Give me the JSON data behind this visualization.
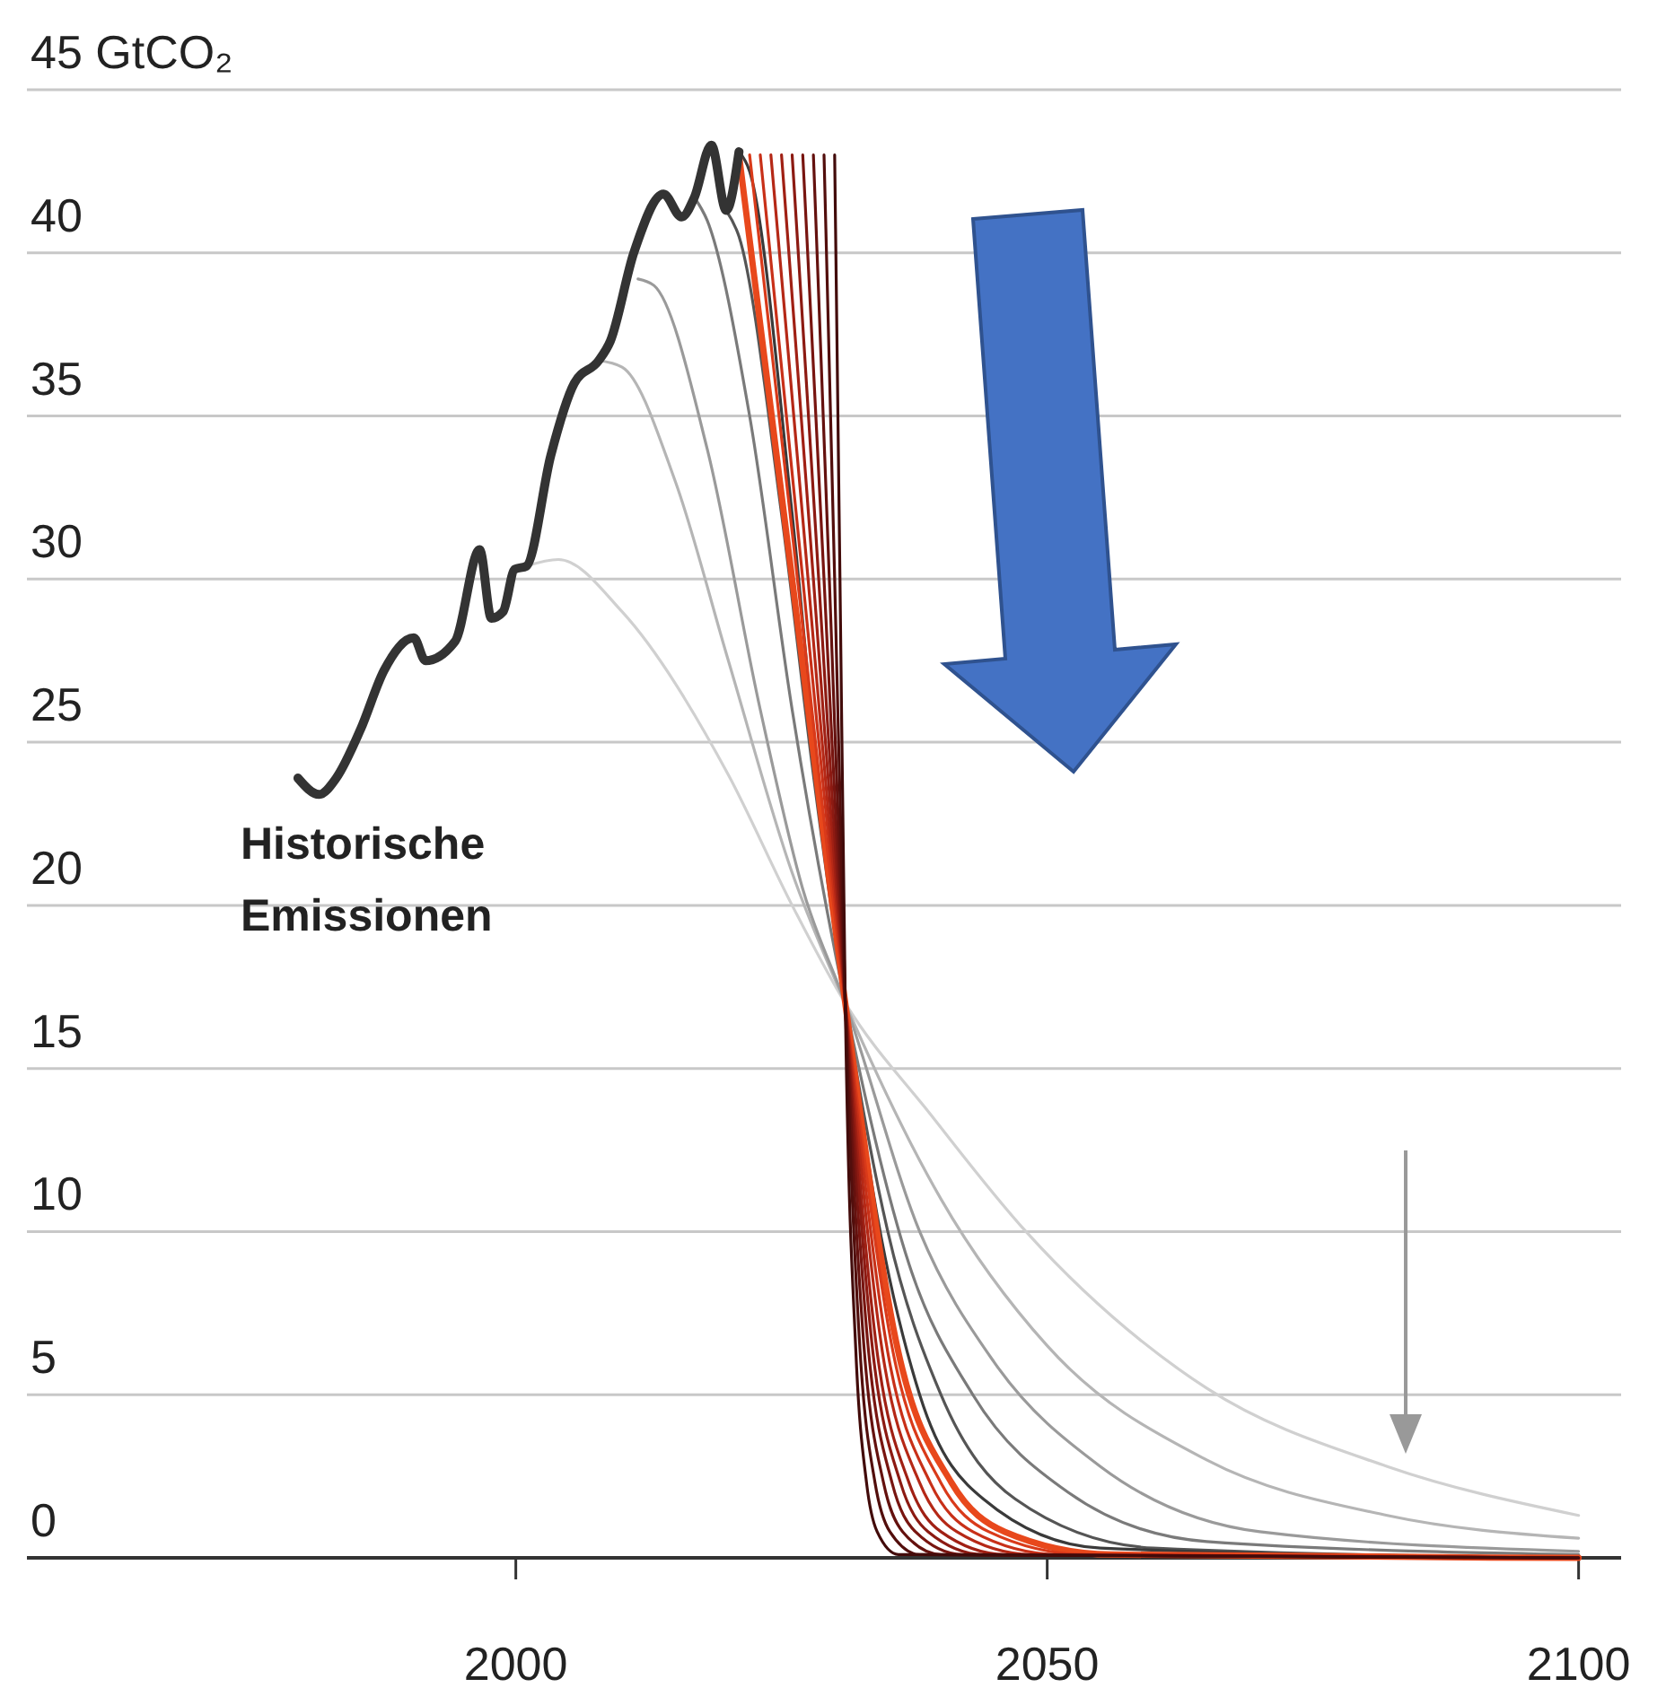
{
  "chart_data": {
    "type": "line",
    "xlim": [
      1954,
      2104
    ],
    "xticks": [
      2000,
      2050,
      2100
    ],
    "ylim": [
      0,
      45
    ],
    "yticks": [
      0,
      5,
      10,
      15,
      20,
      25,
      30,
      35,
      40,
      {
        "value": 45,
        "label": "45 GtCO₂"
      }
    ],
    "grid": "y",
    "legend": false,
    "marker": "none",
    "line_style": "solid",
    "series": [
      {
        "name": "Historische Emissionen",
        "color": "#333333",
        "x": [
          1979.5,
          1981.5,
          1983.1,
          1985.4,
          1987.6,
          1990.4,
          1991.5,
          1994.3,
          1996.6,
          1997.7,
          1998.8,
          1999.9,
          2001,
          2003.3,
          2005.5,
          2007.8,
          2008.9,
          2011.1,
          2013.9,
          2015.6,
          2016.8,
          2018.4,
          2019.8,
          2021
        ],
        "values": [
          23.9,
          23.4,
          23.9,
          25.4,
          27.2,
          28.2,
          27.5,
          28.1,
          30.9,
          28.8,
          29,
          30.3,
          30.4,
          33.8,
          36,
          36.7,
          37.3,
          40,
          41.8,
          41.1,
          41.7,
          43.3,
          41.3,
          43.1
        ]
      },
      {
        "color": "#d0d0d0",
        "x": [
          2001,
          2004,
          2010,
          2020,
          2026,
          2031,
          2039,
          2048,
          2065,
          2082,
          2100
        ],
        "values": [
          30.4,
          30.6,
          29,
          24,
          20,
          17,
          13.6,
          10,
          5.2,
          2.8,
          1.3
        ]
      },
      {
        "color": "#b5b5b5",
        "x": [
          2007.8,
          2010,
          2015,
          2020,
          2026,
          2031,
          2040,
          2050,
          2065,
          2082,
          2100
        ],
        "values": [
          36.7,
          36.5,
          33,
          27.5,
          21,
          17,
          11,
          6.5,
          3,
          1.3,
          0.6
        ]
      },
      {
        "color": "#9a9a9a",
        "x": [
          2011.5,
          2013,
          2018,
          2023,
          2027,
          2031,
          2038,
          2045,
          2055,
          2070,
          2100
        ],
        "values": [
          39.2,
          39,
          34,
          26,
          20.5,
          17,
          10,
          6,
          2.8,
          0.8,
          0.2
        ]
      },
      {
        "color": "#7a7a7a",
        "x": [
          2016.8,
          2018,
          2022,
          2026,
          2031,
          2037,
          2043,
          2052,
          2065,
          2100
        ],
        "values": [
          41.7,
          41,
          35,
          26,
          17,
          9,
          5,
          2,
          0.5,
          0.1
        ]
      },
      {
        "color": "#555555",
        "x": [
          2019.8,
          2021,
          2025,
          2028,
          2031,
          2035,
          2040,
          2047,
          2060,
          2100
        ],
        "values": [
          41.3,
          40.5,
          32,
          24,
          17,
          10,
          5,
          1.8,
          0.3,
          0
        ]
      },
      {
        "color": "#3a3a3a",
        "x": [
          2021,
          2022,
          2026,
          2029,
          2031,
          2034,
          2038,
          2044,
          2055,
          2100
        ],
        "values": [
          43.1,
          42.5,
          32,
          22,
          17,
          10.5,
          5,
          1.8,
          0.3,
          0
        ]
      },
      {
        "color": "#e8481c",
        "x": [
          2021,
          2026,
          2031,
          2036,
          2041,
          2046,
          2056,
          2100
        ],
        "values": [
          43,
          30,
          17,
          6.3,
          2.3,
          0.8,
          0.1,
          0
        ]
      },
      {
        "color": "#d93a1a",
        "x": [
          2022,
          2026.5,
          2031,
          2035.5,
          2040,
          2044.5,
          2053.5,
          2100
        ],
        "values": [
          43,
          30,
          17,
          6.3,
          2.3,
          0.8,
          0.1,
          0
        ]
      },
      {
        "color": "#c83018",
        "x": [
          2023,
          2027,
          2031,
          2035,
          2039,
          2043,
          2051,
          2100
        ],
        "values": [
          43,
          30,
          17,
          6.3,
          2.3,
          0.8,
          0.1,
          0
        ]
      },
      {
        "color": "#b52816",
        "x": [
          2024,
          2027.5,
          2031,
          2034.5,
          2038,
          2041.5,
          2048.5,
          2100
        ],
        "values": [
          43,
          30,
          17,
          6.3,
          2.3,
          0.8,
          0.1,
          0
        ]
      },
      {
        "color": "#a02014",
        "x": [
          2025,
          2028,
          2031,
          2034,
          2037,
          2040,
          2046,
          2100
        ],
        "values": [
          43,
          30,
          17,
          6.3,
          2.3,
          0.8,
          0.1,
          0
        ]
      },
      {
        "color": "#8c1a12",
        "x": [
          2026,
          2028.5,
          2031,
          2033.6,
          2036.2,
          2038.8,
          2044,
          2100
        ],
        "values": [
          43,
          30,
          17,
          6.3,
          2.3,
          0.8,
          0.1,
          0
        ]
      },
      {
        "color": "#781510",
        "x": [
          2027,
          2029,
          2031,
          2033.2,
          2035.4,
          2037.6,
          2042,
          2100
        ],
        "values": [
          43,
          30,
          17,
          6.3,
          2.3,
          0.8,
          0.1,
          0
        ]
      },
      {
        "color": "#64110e",
        "x": [
          2028,
          2029.5,
          2031,
          2032.8,
          2034.6,
          2036.4,
          2040,
          2100
        ],
        "values": [
          43,
          30,
          17,
          6.3,
          2.3,
          0.8,
          0.1,
          0
        ]
      },
      {
        "color": "#520e0c",
        "x": [
          2029,
          2030,
          2031,
          2032.4,
          2033.8,
          2035.2,
          2038,
          2100
        ],
        "values": [
          43,
          30,
          17,
          6.3,
          2.3,
          0.8,
          0.1,
          0
        ]
      },
      {
        "color": "#420b0a",
        "x": [
          2030,
          2030.5,
          2031,
          2032,
          2033,
          2034,
          2036,
          2100
        ],
        "values": [
          43,
          30,
          17,
          6.3,
          2.3,
          0.8,
          0.1,
          0
        ]
      }
    ]
  }
}
